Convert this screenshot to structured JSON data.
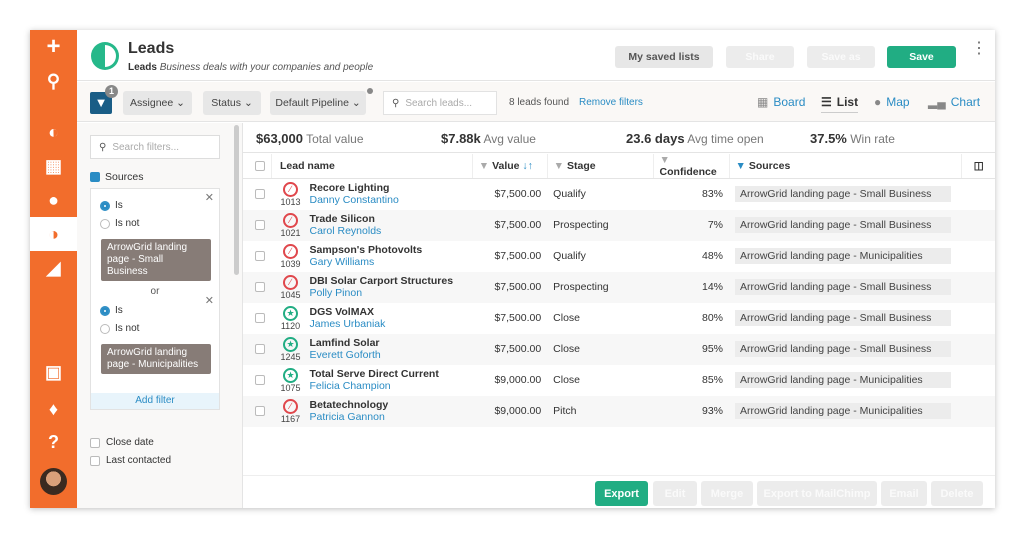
{
  "app": {
    "title": "Leads",
    "subtitle_bold": "Leads",
    "subtitle": "Business deals with your companies and people"
  },
  "header": {
    "saved_lists": "My saved lists",
    "share": "Share",
    "save_as": "Save as",
    "save": "Save"
  },
  "toolbar": {
    "filter_count": "1",
    "assignee": "Assignee",
    "status": "Status",
    "pipeline": "Default Pipeline",
    "search_placeholder": "Search leads...",
    "found": "8 leads found",
    "remove_filters": "Remove filters",
    "views": [
      {
        "label": "Board"
      },
      {
        "label": "List"
      },
      {
        "label": "Map"
      },
      {
        "label": "Chart"
      }
    ]
  },
  "filters": {
    "search_placeholder": "Search filters...",
    "sources_label": "Sources",
    "groups": [
      {
        "is": "Is",
        "is_not": "Is not",
        "tag": "ArrowGrid landing page - Small Business"
      },
      {
        "is": "Is",
        "is_not": "Is not",
        "tag": "ArrowGrid landing page - Municipalities"
      }
    ],
    "or": "or",
    "add_filter": "Add filter",
    "other": [
      "Close date",
      "Last contacted"
    ]
  },
  "stats": [
    {
      "value": "$63,000",
      "label": "Total value"
    },
    {
      "value": "$7.88k",
      "label": "Avg value"
    },
    {
      "value": "23.6 days",
      "label": "Avg time open"
    },
    {
      "value": "37.5%",
      "label": "Win rate"
    }
  ],
  "table": {
    "columns": [
      "Lead name",
      "Value",
      "Stage",
      "Confidence",
      "Sources"
    ],
    "rows": [
      {
        "status": "lost",
        "id": "1013",
        "name": "Recore Lighting",
        "contact": "Danny Constantino",
        "value": "$7,500.00",
        "stage": "Qualify",
        "confidence": "83%",
        "source": "ArrowGrid landing page - Small Business"
      },
      {
        "status": "lost",
        "id": "1021",
        "name": "Trade Silicon",
        "contact": "Carol Reynolds",
        "value": "$7,500.00",
        "stage": "Prospecting",
        "confidence": "7%",
        "source": "ArrowGrid landing page - Small Business"
      },
      {
        "status": "lost",
        "id": "1039",
        "name": "Sampson's Photovolts",
        "contact": "Gary Williams",
        "value": "$7,500.00",
        "stage": "Qualify",
        "confidence": "48%",
        "source": "ArrowGrid landing page - Municipalities"
      },
      {
        "status": "lost",
        "id": "1045",
        "name": "DBI Solar Carport Structures",
        "contact": "Polly Pinon",
        "value": "$7,500.00",
        "stage": "Prospecting",
        "confidence": "14%",
        "source": "ArrowGrid landing page - Small Business"
      },
      {
        "status": "won",
        "id": "1120",
        "name": "DGS VolMAX",
        "contact": "James Urbaniak",
        "value": "$7,500.00",
        "stage": "Close",
        "confidence": "80%",
        "source": "ArrowGrid landing page - Small Business"
      },
      {
        "status": "won",
        "id": "1245",
        "name": "Lamfind Solar",
        "contact": "Everett Goforth",
        "value": "$7,500.00",
        "stage": "Close",
        "confidence": "95%",
        "source": "ArrowGrid landing page - Small Business"
      },
      {
        "status": "won",
        "id": "1075",
        "name": "Total Serve Direct Current",
        "contact": "Felicia Champion",
        "value": "$9,000.00",
        "stage": "Close",
        "confidence": "85%",
        "source": "ArrowGrid landing page - Municipalities"
      },
      {
        "status": "lost",
        "id": "1167",
        "name": "Betatechnology",
        "contact": "Patricia Gannon",
        "value": "$9,000.00",
        "stage": "Pitch",
        "confidence": "93%",
        "source": "ArrowGrid landing page - Municipalities"
      }
    ]
  },
  "actions": {
    "export": "Export",
    "edit": "Edit",
    "merge": "Merge",
    "mailchimp": "Export to MailChimp",
    "email": "Email",
    "delete": "Delete"
  },
  "colors": {
    "sidebar": "#f26d2c",
    "primary": "#21ad83",
    "link": "#2a8cc4",
    "lost": "#e0474c",
    "won": "#21ad83"
  }
}
